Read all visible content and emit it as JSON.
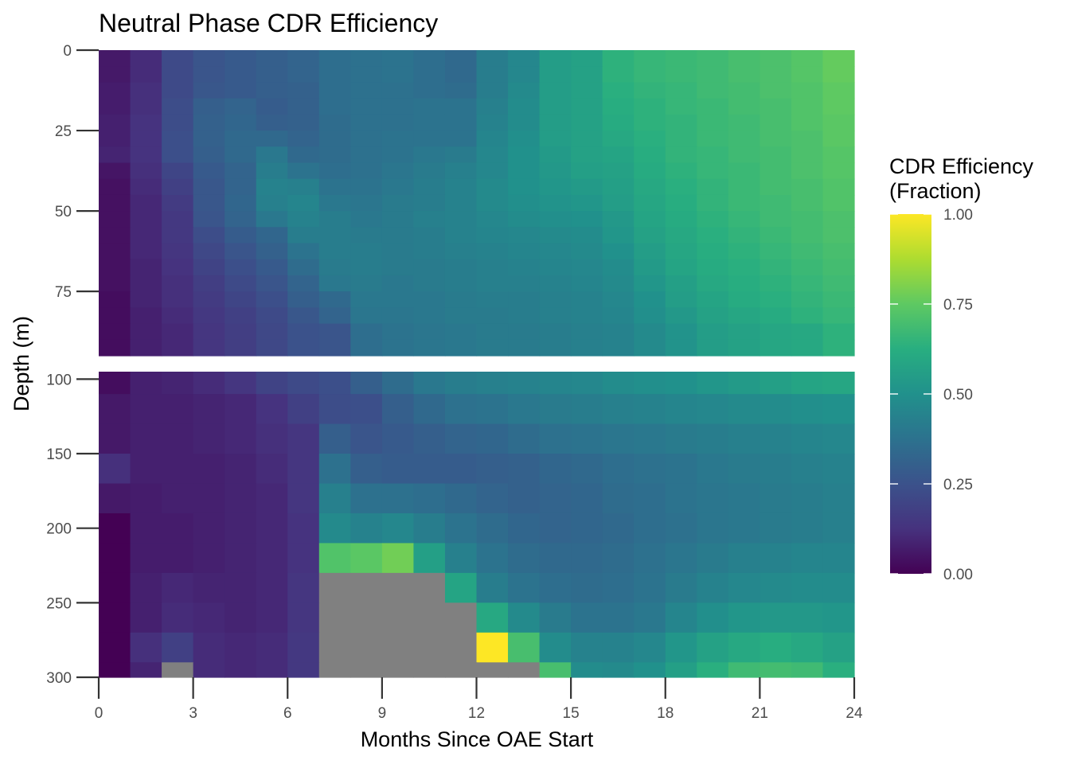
{
  "chart_data": {
    "type": "heatmap",
    "title": "Neutral Phase CDR Efficiency",
    "xlabel": "Months Since OAE Start",
    "ylabel": "Depth (m)",
    "x_ticks": [
      0,
      3,
      6,
      9,
      12,
      15,
      18,
      21,
      24
    ],
    "xlim": [
      0,
      24
    ],
    "x_cells": [
      0.5,
      1.5,
      2.5,
      3.5,
      4.5,
      5.5,
      6.5,
      7.5,
      8.5,
      9.5,
      10.5,
      11.5,
      12.5,
      13.5,
      14.5,
      15.5,
      16.5,
      17.5,
      18.5,
      19.5,
      20.5,
      21.5,
      22.5,
      23.5
    ],
    "missing_color": "#808080",
    "colormap": "viridis",
    "legend": {
      "title_line1": "CDR Efficiency",
      "title_line2": "(Fraction)",
      "ticks": [
        0.0,
        0.25,
        0.5,
        0.75,
        1.0
      ],
      "tick_labels": [
        "0.00",
        "0.25",
        "0.50",
        "0.75",
        "1.00"
      ],
      "range": [
        0,
        1
      ],
      "placement": "right"
    },
    "panels": [
      {
        "name": "upper",
        "ylim": [
          0,
          95
        ],
        "y_ticks": [
          0,
          25,
          50,
          75
        ],
        "depths": [
          [
            0,
            5
          ],
          [
            5,
            10
          ],
          [
            10,
            15
          ],
          [
            15,
            20
          ],
          [
            20,
            25
          ],
          [
            25,
            30
          ],
          [
            30,
            35
          ],
          [
            35,
            40
          ],
          [
            40,
            45
          ],
          [
            45,
            50
          ],
          [
            50,
            55
          ],
          [
            55,
            60
          ],
          [
            60,
            65
          ],
          [
            65,
            70
          ],
          [
            70,
            75
          ],
          [
            75,
            80
          ],
          [
            80,
            85
          ],
          [
            85,
            90
          ],
          [
            90,
            95
          ]
        ],
        "values": [
          [
            0.06,
            0.11,
            0.22,
            0.26,
            0.28,
            0.3,
            0.32,
            0.36,
            0.37,
            0.38,
            0.36,
            0.34,
            0.42,
            0.46,
            0.55,
            0.57,
            0.64,
            0.66,
            0.67,
            0.68,
            0.7,
            0.71,
            0.73,
            0.76
          ],
          [
            0.06,
            0.11,
            0.22,
            0.26,
            0.28,
            0.3,
            0.32,
            0.36,
            0.37,
            0.38,
            0.36,
            0.34,
            0.42,
            0.46,
            0.55,
            0.57,
            0.64,
            0.66,
            0.67,
            0.68,
            0.7,
            0.71,
            0.73,
            0.76
          ],
          [
            0.07,
            0.12,
            0.22,
            0.27,
            0.28,
            0.3,
            0.31,
            0.36,
            0.37,
            0.37,
            0.36,
            0.35,
            0.42,
            0.47,
            0.55,
            0.57,
            0.63,
            0.65,
            0.66,
            0.68,
            0.69,
            0.71,
            0.72,
            0.75
          ],
          [
            0.07,
            0.12,
            0.23,
            0.3,
            0.32,
            0.29,
            0.31,
            0.36,
            0.37,
            0.37,
            0.38,
            0.38,
            0.43,
            0.48,
            0.55,
            0.57,
            0.62,
            0.64,
            0.66,
            0.67,
            0.69,
            0.7,
            0.72,
            0.75
          ],
          [
            0.08,
            0.13,
            0.23,
            0.31,
            0.33,
            0.3,
            0.31,
            0.35,
            0.37,
            0.37,
            0.38,
            0.38,
            0.44,
            0.48,
            0.55,
            0.57,
            0.61,
            0.64,
            0.65,
            0.67,
            0.68,
            0.7,
            0.72,
            0.74
          ],
          [
            0.08,
            0.13,
            0.24,
            0.31,
            0.34,
            0.34,
            0.32,
            0.35,
            0.37,
            0.38,
            0.38,
            0.38,
            0.45,
            0.49,
            0.55,
            0.57,
            0.6,
            0.63,
            0.65,
            0.67,
            0.68,
            0.7,
            0.71,
            0.74
          ],
          [
            0.09,
            0.13,
            0.24,
            0.3,
            0.34,
            0.4,
            0.34,
            0.35,
            0.37,
            0.38,
            0.4,
            0.41,
            0.46,
            0.5,
            0.54,
            0.57,
            0.58,
            0.62,
            0.65,
            0.66,
            0.68,
            0.69,
            0.71,
            0.73
          ],
          [
            0.05,
            0.12,
            0.2,
            0.28,
            0.32,
            0.42,
            0.38,
            0.36,
            0.37,
            0.39,
            0.41,
            0.43,
            0.46,
            0.5,
            0.53,
            0.56,
            0.57,
            0.61,
            0.64,
            0.66,
            0.67,
            0.69,
            0.71,
            0.73
          ],
          [
            0.04,
            0.11,
            0.18,
            0.27,
            0.32,
            0.44,
            0.43,
            0.38,
            0.38,
            0.4,
            0.42,
            0.44,
            0.47,
            0.5,
            0.52,
            0.54,
            0.56,
            0.6,
            0.63,
            0.65,
            0.67,
            0.69,
            0.7,
            0.72
          ],
          [
            0.04,
            0.1,
            0.16,
            0.27,
            0.33,
            0.43,
            0.45,
            0.4,
            0.39,
            0.41,
            0.42,
            0.44,
            0.47,
            0.49,
            0.51,
            0.52,
            0.55,
            0.59,
            0.62,
            0.65,
            0.67,
            0.68,
            0.7,
            0.72
          ],
          [
            0.04,
            0.1,
            0.15,
            0.26,
            0.32,
            0.4,
            0.44,
            0.42,
            0.4,
            0.41,
            0.43,
            0.44,
            0.46,
            0.48,
            0.49,
            0.5,
            0.53,
            0.58,
            0.61,
            0.64,
            0.66,
            0.68,
            0.69,
            0.71
          ],
          [
            0.04,
            0.1,
            0.15,
            0.23,
            0.29,
            0.33,
            0.42,
            0.42,
            0.41,
            0.41,
            0.42,
            0.44,
            0.45,
            0.46,
            0.47,
            0.48,
            0.52,
            0.57,
            0.6,
            0.63,
            0.65,
            0.67,
            0.69,
            0.71
          ],
          [
            0.04,
            0.1,
            0.14,
            0.21,
            0.26,
            0.31,
            0.38,
            0.42,
            0.42,
            0.41,
            0.42,
            0.43,
            0.44,
            0.45,
            0.46,
            0.47,
            0.5,
            0.55,
            0.59,
            0.62,
            0.64,
            0.66,
            0.68,
            0.7
          ],
          [
            0.04,
            0.09,
            0.13,
            0.19,
            0.24,
            0.28,
            0.35,
            0.41,
            0.42,
            0.41,
            0.41,
            0.42,
            0.43,
            0.44,
            0.45,
            0.46,
            0.48,
            0.54,
            0.58,
            0.61,
            0.63,
            0.65,
            0.67,
            0.69
          ],
          [
            0.04,
            0.09,
            0.12,
            0.17,
            0.22,
            0.26,
            0.32,
            0.4,
            0.41,
            0.4,
            0.41,
            0.42,
            0.43,
            0.43,
            0.44,
            0.45,
            0.47,
            0.52,
            0.56,
            0.6,
            0.62,
            0.64,
            0.66,
            0.68
          ],
          [
            0.03,
            0.09,
            0.12,
            0.16,
            0.2,
            0.24,
            0.3,
            0.34,
            0.4,
            0.4,
            0.4,
            0.41,
            0.42,
            0.42,
            0.43,
            0.44,
            0.46,
            0.5,
            0.55,
            0.58,
            0.61,
            0.63,
            0.65,
            0.67
          ],
          [
            0.03,
            0.08,
            0.11,
            0.15,
            0.18,
            0.22,
            0.27,
            0.32,
            0.39,
            0.39,
            0.4,
            0.41,
            0.41,
            0.42,
            0.43,
            0.44,
            0.45,
            0.49,
            0.53,
            0.57,
            0.59,
            0.61,
            0.64,
            0.66
          ],
          [
            0.03,
            0.08,
            0.1,
            0.14,
            0.17,
            0.21,
            0.25,
            0.26,
            0.36,
            0.38,
            0.39,
            0.4,
            0.41,
            0.41,
            0.42,
            0.43,
            0.44,
            0.47,
            0.51,
            0.55,
            0.57,
            0.59,
            0.6,
            0.64
          ],
          [
            0.03,
            0.08,
            0.1,
            0.14,
            0.17,
            0.21,
            0.25,
            0.26,
            0.36,
            0.38,
            0.39,
            0.4,
            0.41,
            0.41,
            0.42,
            0.43,
            0.44,
            0.47,
            0.51,
            0.55,
            0.57,
            0.59,
            0.6,
            0.64
          ]
        ]
      },
      {
        "name": "lower",
        "ylim": [
          95,
          300
        ],
        "y_ticks": [
          100,
          150,
          200,
          250,
          300
        ],
        "depths": [
          [
            95,
            110
          ],
          [
            110,
            130
          ],
          [
            130,
            150
          ],
          [
            150,
            170
          ],
          [
            170,
            190
          ],
          [
            190,
            210
          ],
          [
            210,
            230
          ],
          [
            230,
            250
          ],
          [
            250,
            270
          ],
          [
            270,
            290
          ],
          [
            290,
            300
          ]
        ],
        "values": [
          [
            0.03,
            0.08,
            0.09,
            0.11,
            0.14,
            0.19,
            0.22,
            0.24,
            0.3,
            0.35,
            0.4,
            0.42,
            0.43,
            0.44,
            0.45,
            0.46,
            0.48,
            0.49,
            0.5,
            0.52,
            0.54,
            0.56,
            0.58,
            0.59
          ],
          [
            0.06,
            0.08,
            0.08,
            0.09,
            0.1,
            0.13,
            0.18,
            0.23,
            0.24,
            0.3,
            0.34,
            0.37,
            0.38,
            0.4,
            0.41,
            0.42,
            0.43,
            0.44,
            0.45,
            0.46,
            0.47,
            0.48,
            0.49,
            0.5
          ],
          [
            0.06,
            0.08,
            0.08,
            0.09,
            0.1,
            0.12,
            0.14,
            0.3,
            0.26,
            0.28,
            0.3,
            0.32,
            0.33,
            0.35,
            0.37,
            0.38,
            0.39,
            0.4,
            0.41,
            0.42,
            0.43,
            0.44,
            0.45,
            0.46
          ],
          [
            0.12,
            0.08,
            0.08,
            0.08,
            0.09,
            0.11,
            0.14,
            0.37,
            0.3,
            0.29,
            0.29,
            0.29,
            0.3,
            0.31,
            0.33,
            0.34,
            0.36,
            0.37,
            0.38,
            0.4,
            0.41,
            0.42,
            0.43,
            0.44
          ],
          [
            0.06,
            0.07,
            0.08,
            0.08,
            0.09,
            0.1,
            0.14,
            0.43,
            0.37,
            0.37,
            0.36,
            0.34,
            0.32,
            0.31,
            0.32,
            0.33,
            0.35,
            0.36,
            0.38,
            0.39,
            0.4,
            0.41,
            0.42,
            0.43
          ],
          [
            0.0,
            0.07,
            0.07,
            0.08,
            0.09,
            0.1,
            0.13,
            0.47,
            0.44,
            0.46,
            0.42,
            0.38,
            0.35,
            0.33,
            0.32,
            0.33,
            0.34,
            0.36,
            0.37,
            0.39,
            0.4,
            0.41,
            0.42,
            0.43
          ],
          [
            0.0,
            0.07,
            0.07,
            0.08,
            0.09,
            0.1,
            0.13,
            0.72,
            0.74,
            0.78,
            0.56,
            0.43,
            0.38,
            0.35,
            0.34,
            0.34,
            0.35,
            0.37,
            0.39,
            0.41,
            0.43,
            0.44,
            0.45,
            0.45
          ],
          [
            0.0,
            0.08,
            0.1,
            0.09,
            0.09,
            0.1,
            0.14,
            null,
            null,
            null,
            null,
            0.58,
            0.42,
            0.38,
            0.36,
            0.35,
            0.36,
            0.38,
            0.41,
            0.44,
            0.46,
            0.47,
            0.48,
            0.48
          ],
          [
            0.0,
            0.08,
            0.11,
            0.1,
            0.09,
            0.1,
            0.14,
            null,
            null,
            null,
            null,
            null,
            0.6,
            0.47,
            0.41,
            0.38,
            0.38,
            0.4,
            0.45,
            0.49,
            0.52,
            0.53,
            0.53,
            0.52
          ],
          [
            0.0,
            0.12,
            0.18,
            0.11,
            0.1,
            0.11,
            0.15,
            null,
            null,
            null,
            null,
            null,
            1.0,
            0.7,
            0.48,
            0.44,
            0.44,
            0.46,
            0.52,
            0.57,
            0.6,
            0.62,
            0.6,
            0.57
          ],
          [
            0.0,
            0.09,
            null,
            0.11,
            0.1,
            0.11,
            0.15,
            null,
            null,
            null,
            null,
            null,
            null,
            null,
            0.7,
            0.48,
            0.47,
            0.5,
            0.56,
            0.63,
            0.68,
            0.69,
            0.68,
            0.63
          ]
        ]
      }
    ]
  }
}
